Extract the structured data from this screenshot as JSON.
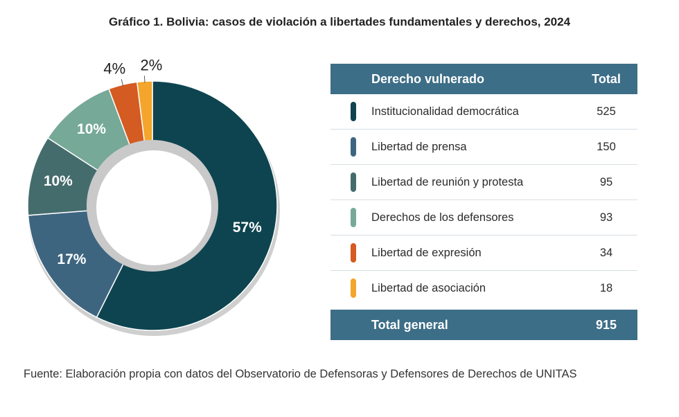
{
  "title": "Gráfico 1. Bolivia: casos de violación a libertades fundamentales y derechos, 2024",
  "chart_data": {
    "type": "pie",
    "donut": true,
    "categories": [
      "Institucionalidad democrática",
      "Libertad de prensa",
      "Libertad de reunión y protesta",
      "Derechos de los defensores",
      "Libertad de expresión",
      "Libertad de asociación"
    ],
    "values": [
      525,
      150,
      95,
      93,
      34,
      18
    ],
    "percent_labels": [
      "57%",
      "17%",
      "10%",
      "10%",
      "4%",
      "2%"
    ],
    "colors": [
      "#0e4450",
      "#3e6580",
      "#456c6d",
      "#76a997",
      "#d45b22",
      "#f4a52c"
    ],
    "label_colors": [
      "#ffffff",
      "#ffffff",
      "#ffffff",
      "#ffffff",
      "#222222",
      "#222222"
    ],
    "label_outside": [
      false,
      false,
      false,
      false,
      true,
      true
    ]
  },
  "table": {
    "header_name": "Derecho vulnerado",
    "header_total": "Total",
    "rows": [
      {
        "name": "Institucionalidad democrática",
        "total": "525",
        "color": "#0e4450"
      },
      {
        "name": "Libertad de prensa",
        "total": "150",
        "color": "#3e6580"
      },
      {
        "name": "Libertad de reunión y protesta",
        "total": "95",
        "color": "#456c6d"
      },
      {
        "name": "Derechos de los defensores",
        "total": "93",
        "color": "#76a997"
      },
      {
        "name": "Libertad de expresión",
        "total": "34",
        "color": "#d45b22"
      },
      {
        "name": "Libertad de asociación",
        "total": "18",
        "color": "#f4a52c"
      }
    ],
    "footer_name": "Total general",
    "footer_total": "915"
  },
  "source": "Fuente: Elaboración propia con datos del Observatorio de Defensoras y Defensores de Derechos de UNITAS"
}
